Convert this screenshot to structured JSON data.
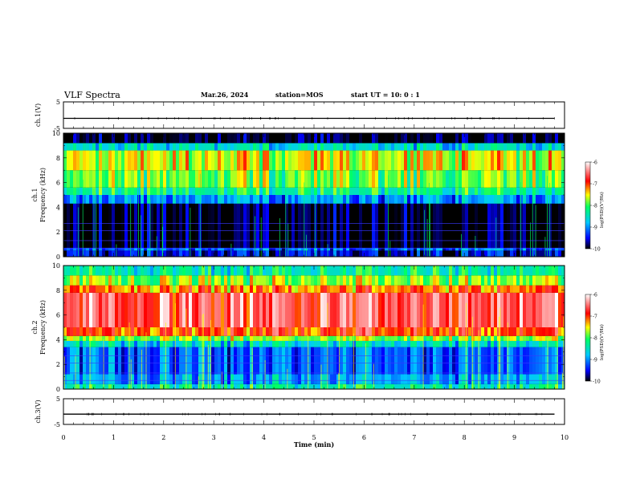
{
  "header": {
    "title": "VLF Spectra",
    "date": "Mar.26, 2024",
    "station": "station=MOS",
    "start": "start UT =   10: 0  : 1"
  },
  "colors": {
    "spectrum": [
      "#000000",
      "#0000ff",
      "#00c8ff",
      "#00ff64",
      "#ffff00",
      "#ff0000",
      "#ffffff"
    ]
  },
  "chart_data": [
    {
      "type": "line",
      "name": "ch1-waveform",
      "ylabel": "ch.1(V)",
      "ylim": [
        -5,
        5
      ],
      "yticks": [
        "5",
        "-5"
      ],
      "x": [
        0,
        9.8
      ],
      "y": [
        -1.2,
        -1.2
      ],
      "xlim": [
        0,
        10
      ]
    },
    {
      "type": "heatmap",
      "name": "ch1-spectrogram",
      "ylabel": "ch.1\nFrequency (kHz)",
      "ylim": [
        0,
        10
      ],
      "yticks": [
        "0",
        "2",
        "4",
        "6",
        "8",
        "10"
      ],
      "xlim": [
        0,
        10
      ],
      "colorbar": {
        "label": "log(PSD)(V²/Hz)",
        "range": [
          -10,
          -6
        ],
        "ticks": [
          "-6",
          "-7",
          "-8",
          "-9",
          "-10"
        ]
      },
      "bands": [
        {
          "f": [
            0,
            0.5
          ],
          "level": -9.6
        },
        {
          "f": [
            0.5,
            0.7
          ],
          "level": -9.2
        },
        {
          "f": [
            0.7,
            4.3
          ],
          "level": -10
        },
        {
          "f": [
            4.3,
            5.0
          ],
          "level": -9.0
        },
        {
          "f": [
            5.0,
            5.6
          ],
          "level": -8.3
        },
        {
          "f": [
            5.6,
            7.0
          ],
          "level": -7.9
        },
        {
          "f": [
            7.0,
            8.6
          ],
          "level": -7.6
        },
        {
          "f": [
            8.6,
            9.2
          ],
          "level": -8.6
        },
        {
          "f": [
            9.2,
            10
          ],
          "level": -10
        }
      ]
    },
    {
      "type": "heatmap",
      "name": "ch2-spectrogram",
      "ylabel": "ch.2\nFrequency (kHz)",
      "ylim": [
        0,
        10
      ],
      "yticks": [
        "0",
        "2",
        "4",
        "6",
        "8",
        "10"
      ],
      "xlim": [
        0,
        10
      ],
      "colorbar": {
        "label": "log(PSD)(V²/Hz)",
        "range": [
          -10,
          -6
        ],
        "ticks": [
          "-6",
          "-7",
          "-8",
          "-9",
          "-10"
        ]
      },
      "bands": [
        {
          "f": [
            0,
            0.4
          ],
          "level": -8.4
        },
        {
          "f": [
            0.4,
            1.2
          ],
          "level": -8.9
        },
        {
          "f": [
            1.2,
            3.4
          ],
          "level": -9.2
        },
        {
          "f": [
            3.4,
            3.9
          ],
          "level": -8.6
        },
        {
          "f": [
            3.9,
            4.3
          ],
          "level": -7.8
        },
        {
          "f": [
            4.3,
            5.0
          ],
          "level": -7.0
        },
        {
          "f": [
            5.0,
            7.8
          ],
          "level": -6.6
        },
        {
          "f": [
            7.8,
            8.4
          ],
          "level": -7.2
        },
        {
          "f": [
            8.4,
            9.2
          ],
          "level": -7.8
        },
        {
          "f": [
            9.2,
            10
          ],
          "level": -8.4
        }
      ]
    },
    {
      "type": "line",
      "name": "ch3-waveform",
      "ylabel": "ch.3(V)",
      "ylim": [
        -5,
        5
      ],
      "yticks": [
        "5",
        "-5"
      ],
      "x": [
        0,
        9.8
      ],
      "y": [
        -1.0,
        -1.0
      ],
      "xlim": [
        0,
        10
      ]
    }
  ],
  "xaxis": {
    "label": "Time (min)",
    "ticks": [
      "0",
      "1",
      "2",
      "3",
      "4",
      "5",
      "6",
      "7",
      "8",
      "9",
      "10"
    ]
  }
}
